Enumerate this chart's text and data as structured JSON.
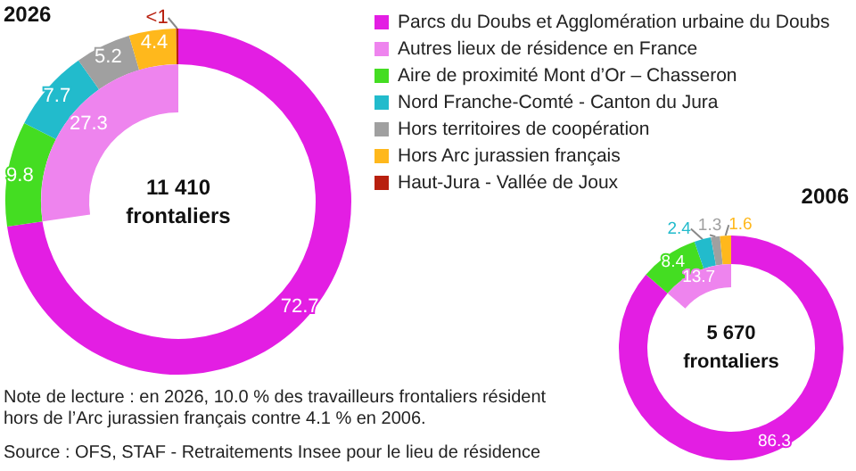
{
  "chart_data": [
    {
      "type": "donut",
      "title": "2026",
      "legend": "right",
      "categories": [
        "Parcs du Doubs et Agglomération urbaine du Doubs",
        "Autres lieux de résidence en France",
        "Aire de proximité Mont d’Or – Chasseron",
        "Nord Franche-Comté - Canton du Jura",
        "Hors territoires de coopération",
        "Hors Arc jurassien français",
        "Haut-Jura - Vallée de Joux"
      ],
      "colors": [
        "#e31ee3",
        "#ee84ee",
        "#44dd22",
        "#22bbcc",
        "#a0a0a0",
        "#ffb81c",
        "#b8200f"
      ],
      "series": [
        {
          "values": [
            72.7,
            null,
            9.8,
            7.7,
            5.2,
            4.4,
            0.2
          ],
          "value_labels": [
            "72.7",
            null,
            "9.8",
            "7.7",
            "5.2",
            "4.4",
            "<1"
          ]
        },
        {
          "values": [
            null,
            27.3,
            null,
            null,
            null,
            null,
            null
          ],
          "value_labels": [
            null,
            "27.3",
            null,
            null,
            null,
            null,
            null
          ]
        }
      ],
      "annotations": [
        "11 410\nfrontaliers",
        "Note de lecture : en 2026, 10.0 % des travailleurs frontaliers résident hors de l’Arc jurassien français contre 4.1 % en 2006.",
        "Source : OFS, STAF - Retraitements Insee pour le lieu de résidence"
      ]
    },
    {
      "type": "donut",
      "title": "2006",
      "data_labels": true,
      "categories": [
        null,
        null,
        null,
        null,
        null,
        null
      ],
      "colors": [
        "#e31ee3",
        "#ee84ee",
        "#44dd22",
        "#22bbcc",
        "#a0a0a0",
        "#ffb81c"
      ],
      "series": [
        {
          "values": [
            86.3,
            null,
            8.4,
            2.4,
            1.3,
            1.6
          ]
        },
        {
          "values": [
            null,
            13.7,
            null,
            null,
            null,
            null
          ]
        }
      ],
      "annotations": [
        "5 670\nfrontaliers"
      ]
    }
  ]
}
